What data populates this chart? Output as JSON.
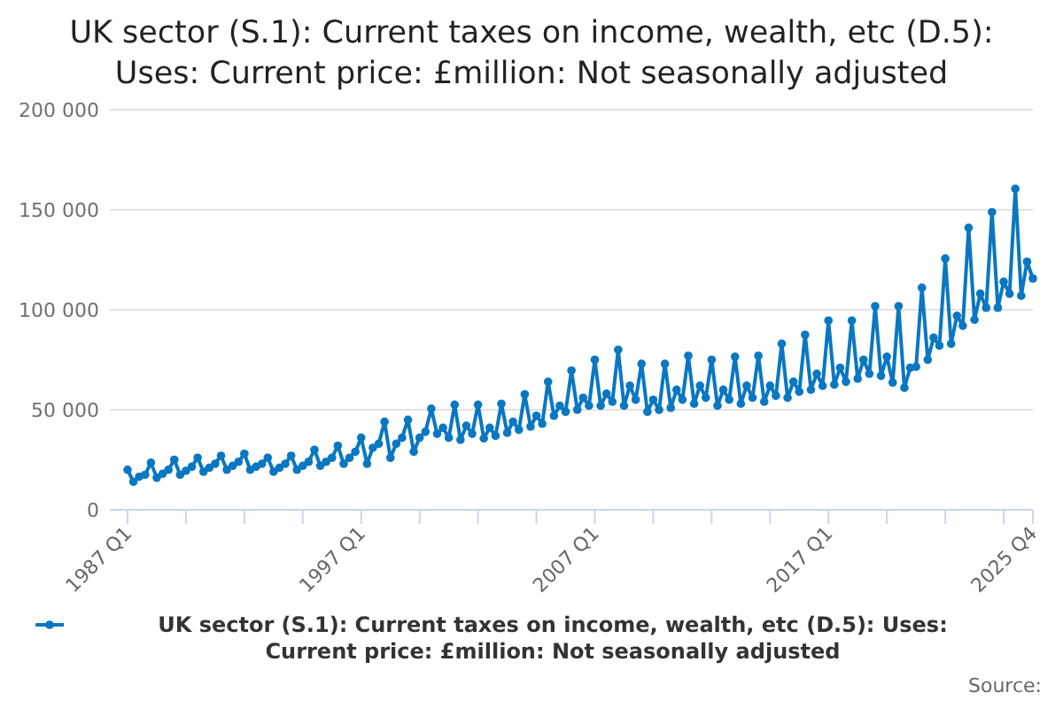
{
  "chart_data": {
    "type": "line",
    "title": "UK sector (S.1): Current taxes on income, wealth, etc (D.5): Uses: Current price: £million: Not seasonally adjusted",
    "categories": [
      "1987 Q1",
      null,
      null,
      null,
      null,
      null,
      null,
      null,
      null,
      null,
      null,
      null,
      null,
      null,
      null,
      null,
      null,
      null,
      null,
      null,
      null,
      null,
      null,
      null,
      null,
      null,
      null,
      null,
      null,
      null,
      null,
      null,
      null,
      null,
      null,
      null,
      null,
      null,
      null,
      null,
      "1997 Q1",
      null,
      null,
      null,
      null,
      null,
      null,
      null,
      null,
      null,
      null,
      null,
      null,
      null,
      null,
      null,
      null,
      null,
      null,
      null,
      null,
      null,
      null,
      null,
      null,
      null,
      null,
      null,
      null,
      null,
      null,
      null,
      null,
      null,
      null,
      null,
      null,
      null,
      null,
      null,
      "2007 Q1",
      null,
      null,
      null,
      null,
      null,
      null,
      null,
      null,
      null,
      null,
      null,
      null,
      null,
      null,
      null,
      null,
      null,
      null,
      null,
      null,
      null,
      null,
      null,
      null,
      null,
      null,
      null,
      null,
      null,
      null,
      null,
      null,
      null,
      null,
      null,
      null,
      null,
      null,
      null,
      "2017 Q1",
      null,
      null,
      null,
      null,
      null,
      null,
      null,
      null,
      null,
      null,
      null,
      null,
      null,
      null,
      null,
      null,
      null,
      null,
      null,
      null,
      null,
      null,
      null,
      null,
      null,
      null,
      null,
      null,
      null,
      null,
      null,
      null,
      null,
      null,
      "2025 Q4"
    ],
    "series": [
      {
        "name": "UK sector (S.1): Current taxes on income, wealth, etc (D.5): Uses: Current price: £million: Not seasonally adjusted",
        "color": "#0a77c2",
        "values": [
          20000,
          14000,
          16500,
          17500,
          23500,
          16000,
          18000,
          20000,
          25000,
          17500,
          19500,
          21500,
          26000,
          19000,
          21000,
          23000,
          27000,
          20000,
          22000,
          24000,
          28000,
          20000,
          21500,
          23000,
          26000,
          19000,
          21000,
          23000,
          27000,
          20000,
          22000,
          24000,
          30000,
          22000,
          24000,
          26000,
          32000,
          23000,
          26000,
          29000,
          36000,
          23000,
          31000,
          33000,
          44000,
          26000,
          33000,
          36000,
          45000,
          29000,
          36000,
          39000,
          50500,
          38000,
          41000,
          36000,
          52500,
          35000,
          42000,
          38000,
          52500,
          35700,
          41000,
          37000,
          53000,
          38500,
          44000,
          40000,
          57700,
          41600,
          47000,
          43000,
          64000,
          47000,
          52000,
          49000,
          69600,
          50000,
          56000,
          52000,
          75000,
          52000,
          58000,
          54000,
          80000,
          52000,
          62000,
          55000,
          73000,
          49000,
          55000,
          50000,
          73000,
          51000,
          60000,
          55000,
          77000,
          53000,
          62000,
          56000,
          75000,
          52000,
          60000,
          55000,
          76500,
          53000,
          62000,
          56000,
          77000,
          54000,
          62000,
          57000,
          83000,
          56000,
          64000,
          59000,
          87500,
          60000,
          68000,
          62000,
          94600,
          62600,
          71000,
          64000,
          94600,
          65500,
          75000,
          68000,
          101800,
          67000,
          76500,
          63600,
          101800,
          61000,
          71000,
          71500,
          111000,
          75000,
          86000,
          82000,
          125600,
          83000,
          97000,
          92000,
          141000,
          95000,
          108000,
          101000,
          148800,
          101000,
          114000,
          108000,
          160500,
          107000,
          124000,
          115600
        ]
      }
    ],
    "ylim": [
      0,
      200000
    ],
    "yticks": [
      0,
      {
        "value": 50000,
        "label": "50 000"
      },
      {
        "value": 100000,
        "label": "100 000"
      },
      {
        "value": 150000,
        "label": "150 000"
      },
      {
        "value": 200000,
        "label": "200 000"
      }
    ],
    "grid": "y",
    "legend": "bottom",
    "marker": "circle",
    "line_style": "solid",
    "annotations": [
      "Source:"
    ]
  }
}
